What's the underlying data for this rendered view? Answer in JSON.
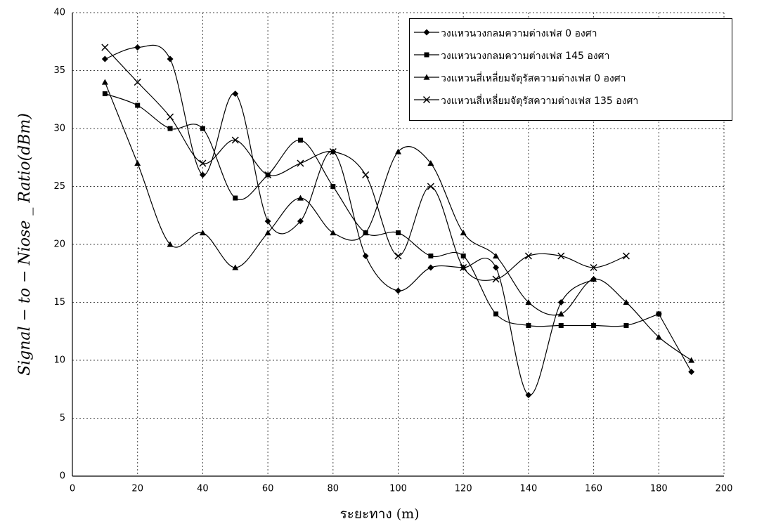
{
  "chart_data": {
    "type": "line",
    "xlabel": "ระยะทาง (m)",
    "ylabel": "Signal − to − Niose _ Ratio(dBm)",
    "x": [
      10,
      20,
      30,
      40,
      50,
      60,
      70,
      80,
      90,
      100,
      110,
      120,
      130,
      140,
      150,
      160,
      170,
      180,
      190
    ],
    "series": [
      {
        "name": "วงแหวนวงกลมความต่างเฟส 0 องศา",
        "color": "#000000",
        "marker": "diamond",
        "values": [
          36,
          37,
          36,
          26,
          33,
          22,
          22,
          28,
          19,
          16,
          18,
          18,
          18,
          7,
          15,
          17,
          null,
          14,
          9
        ]
      },
      {
        "name": "วงแหวนวงกลมความต่างเฟส 145 องศา",
        "color": "#000000",
        "marker": "square",
        "values": [
          33,
          32,
          30,
          30,
          24,
          26,
          29,
          25,
          21,
          21,
          19,
          19,
          14,
          13,
          13,
          13,
          13,
          14,
          null
        ]
      },
      {
        "name": "วงแหวนสี่เหลี่ยมจัตุรัสความต่างเฟส 0 องศา",
        "color": "#000000",
        "marker": "triangle",
        "values": [
          34,
          27,
          20,
          21,
          18,
          21,
          24,
          21,
          21,
          28,
          27,
          21,
          19,
          15,
          14,
          17,
          15,
          12,
          10
        ]
      },
      {
        "name": "วงแหวนสี่เหลี่ยมจัตุรัสความต่างเฟส 135 องศา",
        "color": "#000000",
        "marker": "x",
        "values": [
          37,
          34,
          31,
          27,
          29,
          26,
          27,
          28,
          26,
          19,
          25,
          18,
          17,
          19,
          19,
          18,
          19,
          null,
          null
        ]
      }
    ],
    "xlim": [
      0,
      200
    ],
    "xticks": [
      0,
      20,
      40,
      60,
      80,
      100,
      120,
      140,
      160,
      180,
      200
    ],
    "ylim": [
      0,
      40
    ],
    "yticks": [
      0,
      5,
      10,
      15,
      20,
      25,
      30,
      35,
      40
    ],
    "grid": true,
    "legend": "upper right"
  }
}
